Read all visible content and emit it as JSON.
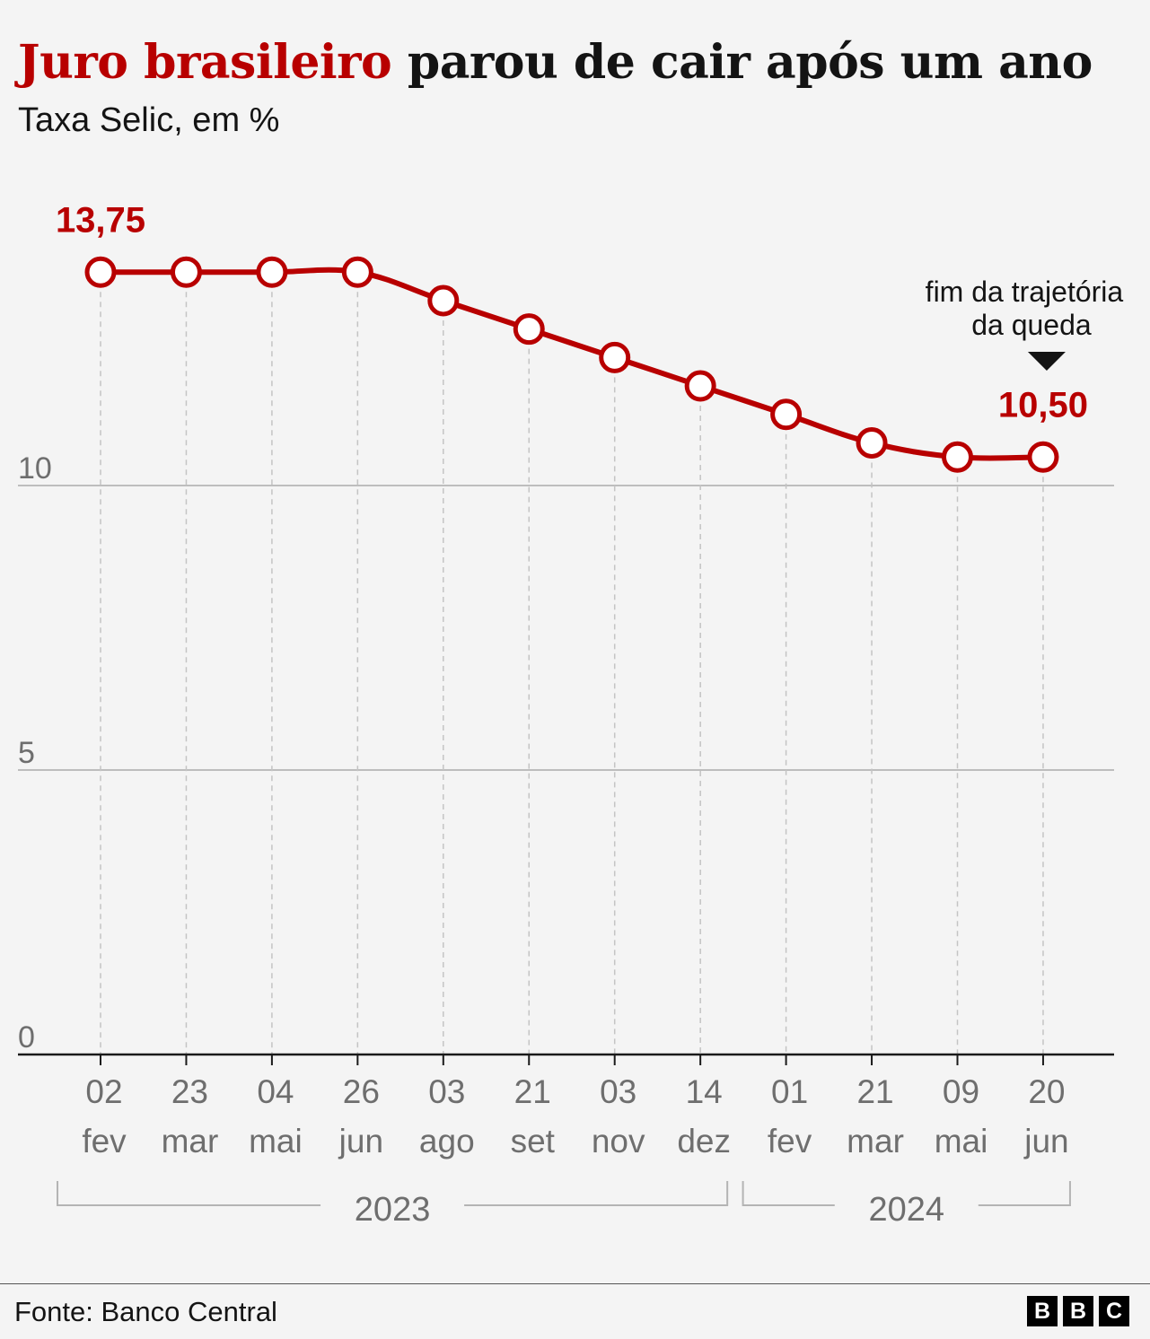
{
  "header": {
    "title_highlight": "Juro brasileiro",
    "title_rest": " parou de cair após um ano",
    "subtitle": "Taxa Selic, em %"
  },
  "footer": {
    "source": "Fonte: Banco Central",
    "logo_letters": [
      "B",
      "B",
      "C"
    ]
  },
  "colors": {
    "series": "#b80000",
    "grid": "#bdbdbd",
    "axis": "#1a1a1a",
    "tick_text": "#6e6e6e",
    "background": "#f4f4f4"
  },
  "chart_data": {
    "type": "line",
    "title": "Juro brasileiro parou de cair após um ano",
    "subtitle": "Taxa Selic, em %",
    "x": [
      {
        "day": "02",
        "month": "fev"
      },
      {
        "day": "23",
        "month": "mar"
      },
      {
        "day": "04",
        "month": "mai"
      },
      {
        "day": "26",
        "month": "jun"
      },
      {
        "day": "03",
        "month": "ago"
      },
      {
        "day": "21",
        "month": "set"
      },
      {
        "day": "03",
        "month": "nov"
      },
      {
        "day": "14",
        "month": "dez"
      },
      {
        "day": "01",
        "month": "fev"
      },
      {
        "day": "21",
        "month": "mar"
      },
      {
        "day": "09",
        "month": "mai"
      },
      {
        "day": "20",
        "month": "jun"
      }
    ],
    "years": [
      {
        "label": "2023",
        "from": 0,
        "to": 7
      },
      {
        "label": "2024",
        "from": 8,
        "to": 11
      }
    ],
    "series": [
      {
        "values": [
          13.75,
          13.75,
          13.75,
          13.75,
          13.25,
          12.75,
          12.25,
          11.75,
          11.25,
          10.75,
          10.5,
          10.5
        ]
      }
    ],
    "y_ticks": [
      "0",
      "5",
      "10"
    ],
    "ylim": [
      0,
      13.75
    ],
    "grid": true,
    "value_labels": [
      {
        "index": 0,
        "text": "13,75"
      },
      {
        "index": 11,
        "text": "10,50"
      }
    ],
    "annotation": {
      "index": 11,
      "lines": [
        "fim da trajetória",
        "da queda"
      ]
    }
  }
}
